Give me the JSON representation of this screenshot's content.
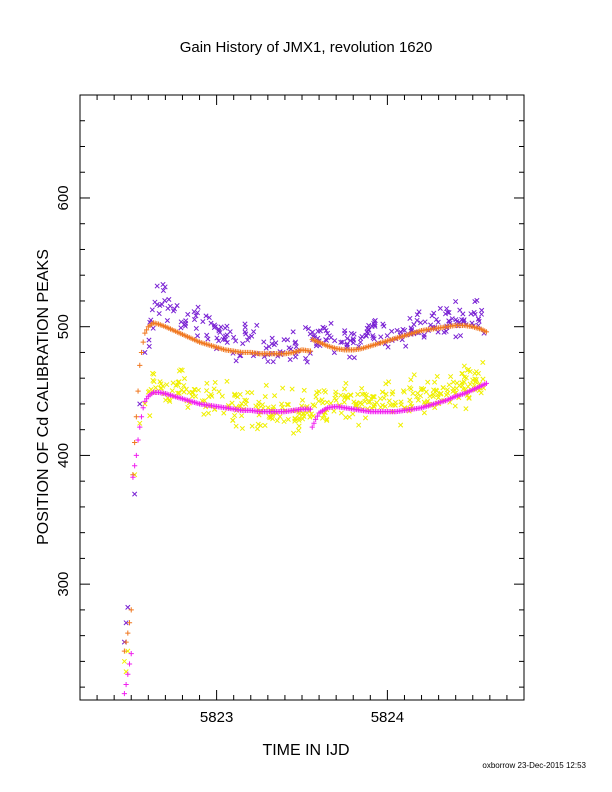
{
  "chart_data": {
    "type": "scatter",
    "title": "Gain History of JMX1, revolution 1620",
    "xlabel": "TIME IN IJD",
    "ylabel": "POSITION OF Cd CALIBRATION PEAKS",
    "footer": "oxborrow 23-Dec-2015 12:53",
    "xlim": [
      5822.2,
      5824.8
    ],
    "ylim": [
      210,
      680
    ],
    "x_ticks": [
      {
        "value": 5823,
        "label": "5823"
      },
      {
        "value": 5824,
        "label": "5824"
      }
    ],
    "y_ticks": [
      {
        "value": 300,
        "label": "300"
      },
      {
        "value": 400,
        "label": "400"
      },
      {
        "value": 500,
        "label": "500"
      },
      {
        "value": 600,
        "label": "600"
      }
    ],
    "grid": false,
    "legend": "none",
    "series": [
      {
        "marker": "x",
        "color": "#7a22d4",
        "scatter": {
          "x_start": 5822.6,
          "x_end": 5824.57,
          "count": 260,
          "spread": 18
        },
        "x": [
          5822.46,
          5822.47,
          5822.48,
          5822.52,
          5822.55,
          5822.58,
          5822.62,
          5822.66,
          5822.7,
          5822.8,
          5822.9,
          5823.0,
          5823.1,
          5823.2,
          5823.3,
          5823.4,
          5823.5,
          5823.55,
          5823.6,
          5823.7,
          5823.8,
          5823.9,
          5824.0,
          5824.1,
          5824.2,
          5824.3,
          5824.4,
          5824.5,
          5824.57
        ],
        "y": [
          255,
          270,
          282,
          370,
          440,
          480,
          505,
          525,
          522,
          508,
          500,
          495,
          490,
          486,
          484,
          482,
          480,
          488,
          492,
          490,
          491,
          494,
          496,
          500,
          503,
          506,
          508,
          506,
          502
        ]
      },
      {
        "marker": "x",
        "color": "#f0f000",
        "scatter": {
          "x_start": 5822.6,
          "x_end": 5824.57,
          "count": 360,
          "spread": 20
        },
        "x": [
          5822.46,
          5822.47,
          5822.48,
          5822.52,
          5822.55,
          5822.58,
          5822.62,
          5822.66,
          5822.7,
          5822.8,
          5822.9,
          5823.0,
          5823.1,
          5823.2,
          5823.3,
          5823.4,
          5823.5,
          5823.55,
          5823.6,
          5823.7,
          5823.8,
          5823.9,
          5824.0,
          5824.1,
          5824.2,
          5824.3,
          5824.4,
          5824.5,
          5824.57
        ],
        "y": [
          240,
          232,
          248,
          385,
          425,
          440,
          450,
          455,
          455,
          450,
          445,
          440,
          438,
          436,
          434,
          433,
          432,
          438,
          440,
          440,
          440,
          440,
          442,
          443,
          446,
          450,
          454,
          457,
          460
        ]
      },
      {
        "marker": "+",
        "color": "#f07820",
        "x": [
          5822.46,
          5822.47,
          5822.48,
          5822.49,
          5822.5,
          5822.51,
          5822.52,
          5822.53,
          5822.54,
          5822.55,
          5822.56,
          5822.57,
          5822.58,
          5822.6,
          5822.63,
          5822.66,
          5822.7,
          5822.75,
          5822.8,
          5822.85,
          5822.9,
          5822.95,
          5823.0,
          5823.05,
          5823.1,
          5823.15,
          5823.2,
          5823.25,
          5823.3,
          5823.35,
          5823.4,
          5823.45,
          5823.5,
          5823.55,
          5823.56,
          5823.6,
          5823.65,
          5823.7,
          5823.75,
          5823.8,
          5823.85,
          5823.9,
          5823.95,
          5824.0,
          5824.05,
          5824.1,
          5824.15,
          5824.2,
          5824.25,
          5824.3,
          5824.35,
          5824.4,
          5824.45,
          5824.5,
          5824.55,
          5824.58
        ],
        "y": [
          248,
          255,
          262,
          270,
          280,
          385,
          410,
          430,
          450,
          470,
          480,
          488,
          495,
          500,
          503,
          502,
          500,
          497,
          494,
          491,
          488,
          486,
          484,
          482,
          481,
          480,
          480,
          479,
          479,
          479,
          479,
          480,
          482,
          481,
          490,
          488,
          485,
          483,
          482,
          482,
          483,
          485,
          487,
          489,
          491,
          493,
          495,
          497,
          498,
          499,
          500,
          501,
          501,
          500,
          498,
          496
        ]
      },
      {
        "marker": "+",
        "color": "#f020f0",
        "x": [
          5822.46,
          5822.47,
          5822.48,
          5822.49,
          5822.5,
          5822.51,
          5822.52,
          5822.53,
          5822.54,
          5822.55,
          5822.56,
          5822.57,
          5822.58,
          5822.6,
          5822.63,
          5822.66,
          5822.7,
          5822.75,
          5822.8,
          5822.85,
          5822.9,
          5822.95,
          5823.0,
          5823.05,
          5823.1,
          5823.15,
          5823.2,
          5823.25,
          5823.3,
          5823.35,
          5823.4,
          5823.45,
          5823.5,
          5823.55,
          5823.56,
          5823.58,
          5823.6,
          5823.65,
          5823.7,
          5823.75,
          5823.8,
          5823.85,
          5823.9,
          5823.95,
          5824.0,
          5824.05,
          5824.1,
          5824.15,
          5824.2,
          5824.25,
          5824.3,
          5824.35,
          5824.4,
          5824.45,
          5824.5,
          5824.55,
          5824.58
        ],
        "y": [
          215,
          222,
          230,
          238,
          246,
          383,
          392,
          400,
          412,
          422,
          430,
          437,
          442,
          446,
          449,
          449,
          448,
          446,
          444,
          442,
          440,
          439,
          438,
          437,
          436,
          435,
          435,
          434,
          434,
          434,
          434,
          435,
          436,
          436,
          422,
          428,
          433,
          437,
          438,
          437,
          436,
          435,
          434,
          434,
          434,
          434,
          435,
          436,
          437,
          439,
          441,
          443,
          446,
          448,
          451,
          454,
          456
        ]
      }
    ]
  }
}
